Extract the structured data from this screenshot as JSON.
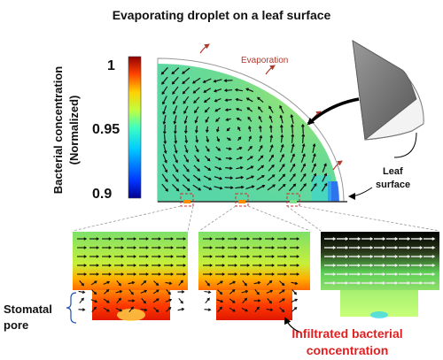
{
  "title": "Evaporating droplet on a leaf surface",
  "colorbar": {
    "label_line1": "Bacterial concentration",
    "label_line2": "(Normalized)",
    "tick_max": "1",
    "tick_mid": "0.95",
    "tick_min": "0.9"
  },
  "labels": {
    "evaporation": "Evaporation",
    "leaf_line1": "Leaf",
    "leaf_line2": "surface",
    "stomatal_line1": "Stomatal",
    "stomatal_line2": "pore",
    "infiltrated_line1": "Infiltrated bacterial",
    "infiltrated_line2": "concentration"
  },
  "colors": {
    "evaporation_text": "#b03a2e",
    "infiltrated_text": "#e02020",
    "callout_box": "#d62728"
  }
}
